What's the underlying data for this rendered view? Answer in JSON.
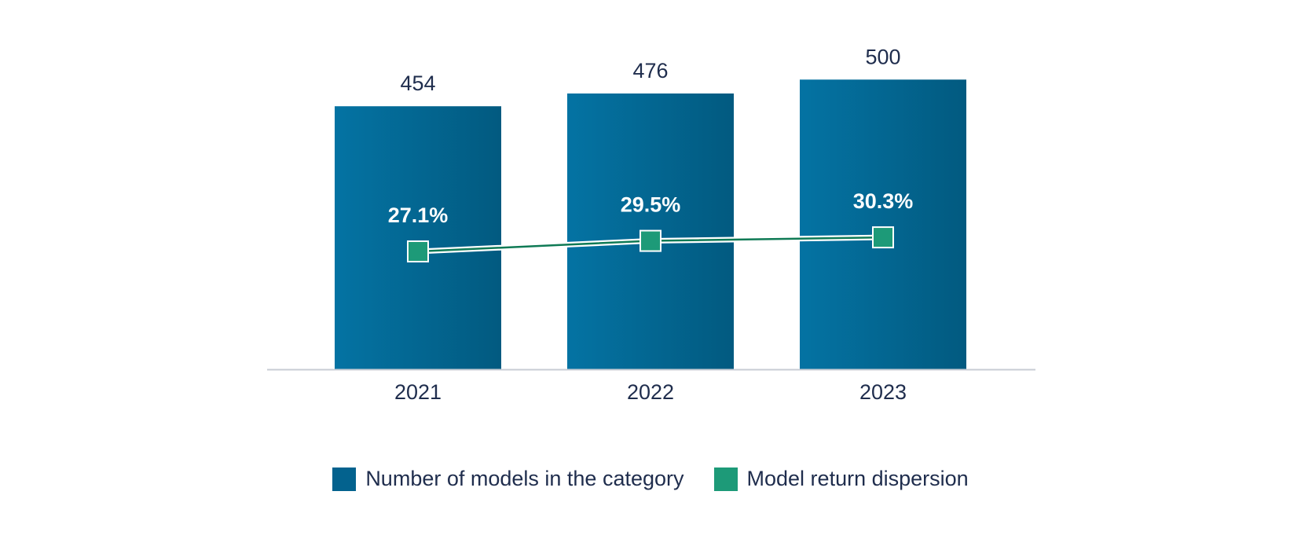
{
  "chart_data": {
    "type": "bar",
    "categories": [
      "2021",
      "2022",
      "2023"
    ],
    "series": [
      {
        "name": "Number of models in the category",
        "type": "bar",
        "values": [
          454,
          476,
          500
        ],
        "labels": [
          "454",
          "476",
          "500"
        ],
        "color": "#03628e"
      },
      {
        "name": "Model return dispersion",
        "type": "line",
        "values": [
          27.1,
          29.5,
          30.3
        ],
        "labels": [
          "27.1%",
          "29.5%",
          "30.3%"
        ],
        "color": "#1d9a78"
      }
    ],
    "title": "",
    "xlabel": "",
    "ylabel": "",
    "ylim": [
      0,
      500
    ],
    "grid": false,
    "legend": "bottom-center"
  },
  "colors": {
    "bar_light": "#0473a3",
    "bar_dark": "#025a80",
    "line": "#0f7a55",
    "marker": "#1d9a78",
    "axis": "#c8ccd4",
    "text": "#1f2d4d"
  }
}
